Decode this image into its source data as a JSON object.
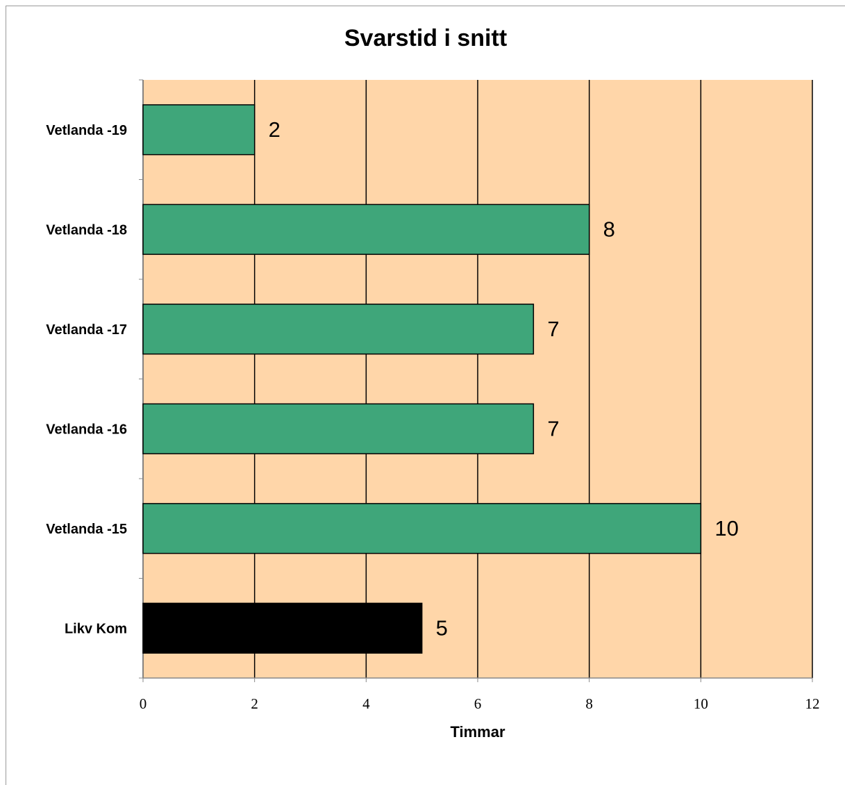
{
  "chart_data": {
    "type": "bar",
    "orientation": "horizontal",
    "title": "Svarstid i snitt",
    "x_label": "Timmar",
    "categories": [
      "Vetlanda -19",
      "Vetlanda -18",
      "Vetlanda -17",
      "Vetlanda -16",
      "Vetlanda -15",
      "Likv Kom"
    ],
    "values": [
      2,
      8,
      7,
      7,
      10,
      5
    ],
    "colors": [
      "#3fa67a",
      "#3fa67a",
      "#3fa67a",
      "#3fa67a",
      "#3fa67a",
      "#000000"
    ],
    "xlim": [
      0,
      12
    ],
    "xticks": [
      0,
      2,
      4,
      6,
      8,
      10,
      12
    ],
    "grid": true,
    "plot_background": "#ffd6a9"
  }
}
